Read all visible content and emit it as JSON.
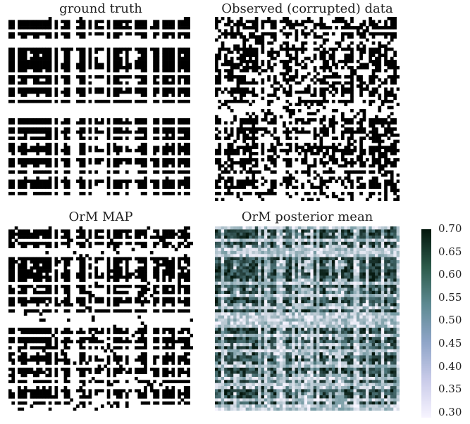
{
  "chart_data": [
    {
      "type": "heatmap",
      "title": "ground truth",
      "colormap": "binary",
      "grid_size": 60,
      "value_range": [
        0,
        1
      ],
      "grid": false
    },
    {
      "type": "heatmap",
      "title": "Observed (corrupted) data",
      "colormap": "binary",
      "grid_size": 60,
      "value_range": [
        0,
        1
      ],
      "grid": false
    },
    {
      "type": "heatmap",
      "title": "OrM MAP",
      "colormap": "binary",
      "grid_size": 60,
      "value_range": [
        0,
        1
      ],
      "grid": false
    },
    {
      "type": "heatmap",
      "title": "OrM posterior mean",
      "colormap": "cubehelix_r",
      "grid_size": 60,
      "value_range": [
        0.3,
        0.7
      ],
      "grid": false,
      "colorbar": {
        "ticks": [
          "0.70",
          "0.65",
          "0.60",
          "0.55",
          "0.50",
          "0.45",
          "0.40",
          "0.35",
          "0.30"
        ]
      }
    }
  ],
  "colors": {
    "on": "#000000",
    "off": "#ffffff",
    "cbar_low": "#f7f4ff",
    "cbar_mid": "#5e8a92",
    "cbar_high": "#03160c"
  }
}
